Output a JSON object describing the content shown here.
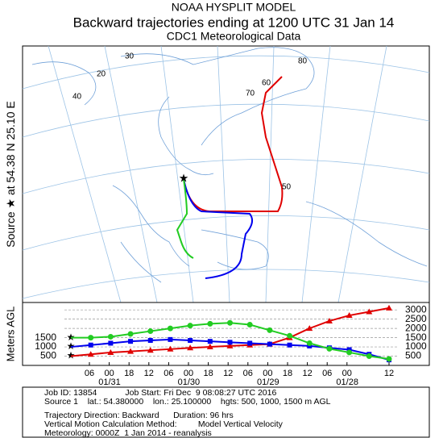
{
  "chart_data": {
    "type": "line",
    "title": "NOAA HYSPLIT MODEL",
    "subtitle": "Backward trajectories ending at 1200 UTC 31 Jan 14",
    "data_source": "CDC1 Meteorological Data",
    "source_label": [
      "Source",
      "at",
      "54.38 N",
      "25.10 E"
    ],
    "map_labels": [
      "80",
      "70",
      "60",
      "50",
      "40",
      "20",
      "30"
    ],
    "y_label": "Meters AGL",
    "source_heights": [
      1500,
      1000,
      500
    ],
    "xtick_labels": [
      "06",
      "00",
      "18",
      "12",
      "06",
      "00",
      "18",
      "12",
      "06",
      "00",
      "18",
      "12",
      "06",
      "00",
      "12"
    ],
    "date_labels": [
      "01/31",
      "01/30",
      "01/29",
      "01/28"
    ],
    "ylim": [
      0,
      3400
    ],
    "yticks": [
      500,
      1000,
      1500,
      2000,
      2500,
      3000
    ],
    "grid": true,
    "series": [
      {
        "color": "#e00000",
        "values": [
          500,
          600,
          700,
          760,
          820,
          880,
          950,
          1000,
          1050,
          1100,
          1150,
          1500,
          2000,
          2400,
          2700,
          2900,
          3100
        ]
      },
      {
        "color": "#0000ee",
        "values": [
          1000,
          1100,
          1200,
          1300,
          1350,
          1400,
          1350,
          1300,
          1250,
          1200,
          1150,
          1100,
          1050,
          950,
          850,
          600,
          300
        ]
      },
      {
        "color": "#22cc22",
        "values": [
          1500,
          1500,
          1550,
          1700,
          1850,
          2000,
          2150,
          2250,
          2300,
          2200,
          1900,
          1600,
          1200,
          900,
          700,
          500,
          350
        ]
      }
    ],
    "info_lines": [
      "Job ID: 13854            Job Start: Fri Dec  9 08:08:27 UTC 2016",
      "Source 1    lat.: 54.380000    lon.: 25.100000    hgts: 500, 1000, 1500 m AGL",
      "Trajectory Direction: Backward      Duration: 96 hrs",
      "Vertical Motion Calculation Method:         Model Vertical Velocity",
      "Meteorology: 0000Z  1 Jan 2014 - reanalysis"
    ]
  }
}
